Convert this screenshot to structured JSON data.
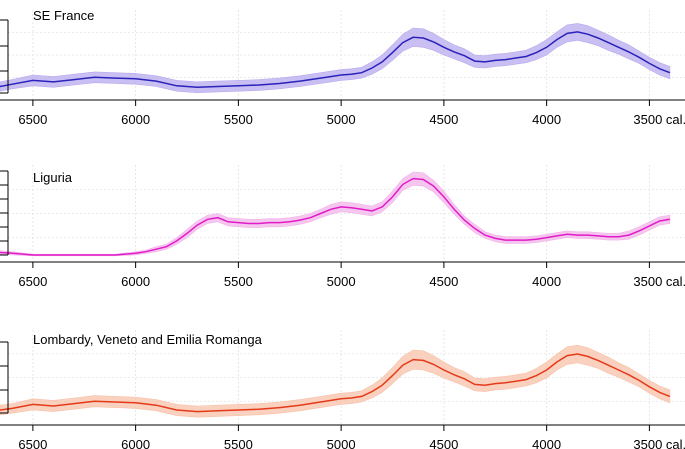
{
  "chart_data": [
    {
      "type": "area",
      "title": "SE France",
      "xlabel": "cal. BC",
      "xlim": [
        6660,
        3390
      ],
      "ylim": [
        0,
        1
      ],
      "x_ticks": [
        6500,
        6000,
        5500,
        5000,
        4500,
        4000,
        3500
      ],
      "x_tick_labels": [
        "6500",
        "6000",
        "5500",
        "5000",
        "4500",
        "4000",
        "3500 cal. BC"
      ],
      "line_color": "#2a22bb",
      "band_color": "#b8aaee",
      "series": [
        {
          "name": "SE France",
          "x": [
            6660,
            6600,
            6500,
            6400,
            6300,
            6200,
            6100,
            6000,
            5900,
            5800,
            5700,
            5600,
            5500,
            5400,
            5300,
            5200,
            5100,
            5000,
            4950,
            4900,
            4850,
            4800,
            4750,
            4700,
            4650,
            4600,
            4550,
            4500,
            4450,
            4400,
            4350,
            4300,
            4250,
            4200,
            4150,
            4100,
            4050,
            4000,
            3950,
            3900,
            3850,
            3800,
            3750,
            3700,
            3650,
            3600,
            3550,
            3500,
            3450,
            3400
          ],
          "values": [
            0.11,
            0.14,
            0.19,
            0.17,
            0.2,
            0.23,
            0.22,
            0.21,
            0.18,
            0.12,
            0.1,
            0.11,
            0.12,
            0.13,
            0.15,
            0.18,
            0.22,
            0.26,
            0.27,
            0.29,
            0.35,
            0.43,
            0.55,
            0.68,
            0.75,
            0.74,
            0.69,
            0.62,
            0.56,
            0.51,
            0.44,
            0.43,
            0.45,
            0.46,
            0.48,
            0.5,
            0.55,
            0.62,
            0.72,
            0.8,
            0.82,
            0.79,
            0.74,
            0.68,
            0.62,
            0.56,
            0.49,
            0.41,
            0.34,
            0.29
          ],
          "band_halfwidth": [
            0.06,
            0.06,
            0.07,
            0.07,
            0.07,
            0.07,
            0.07,
            0.07,
            0.07,
            0.07,
            0.07,
            0.07,
            0.07,
            0.07,
            0.07,
            0.07,
            0.07,
            0.07,
            0.07,
            0.07,
            0.08,
            0.09,
            0.1,
            0.11,
            0.12,
            0.12,
            0.11,
            0.1,
            0.09,
            0.09,
            0.08,
            0.08,
            0.08,
            0.08,
            0.08,
            0.08,
            0.09,
            0.1,
            0.1,
            0.11,
            0.11,
            0.11,
            0.1,
            0.1,
            0.09,
            0.09,
            0.08,
            0.08,
            0.08,
            0.08
          ]
        }
      ]
    },
    {
      "type": "area",
      "title": "Liguria",
      "xlabel": "cal. BC",
      "xlim": [
        6660,
        3390
      ],
      "ylim": [
        0,
        1
      ],
      "x_ticks": [
        6500,
        6000,
        5500,
        5000,
        4500,
        4000,
        3500
      ],
      "x_tick_labels": [
        "6500",
        "6000",
        "5500",
        "5000",
        "4500",
        "4000",
        "3500 cal. BC"
      ],
      "line_color": "#e21bc8",
      "band_color": "#f2b4ea",
      "series": [
        {
          "name": "Liguria",
          "x": [
            6660,
            6600,
            6500,
            6400,
            6300,
            6200,
            6100,
            6000,
            5950,
            5900,
            5850,
            5800,
            5750,
            5700,
            5650,
            5600,
            5550,
            5500,
            5450,
            5400,
            5350,
            5300,
            5250,
            5200,
            5150,
            5100,
            5050,
            5000,
            4950,
            4900,
            4850,
            4800,
            4750,
            4700,
            4650,
            4600,
            4550,
            4500,
            4450,
            4400,
            4350,
            4300,
            4250,
            4200,
            4150,
            4100,
            4050,
            4000,
            3950,
            3900,
            3850,
            3800,
            3750,
            3700,
            3650,
            3600,
            3550,
            3500,
            3450,
            3400
          ],
          "values": [
            0.03,
            0.02,
            0.0,
            0.0,
            0.0,
            0.0,
            0.0,
            0.02,
            0.04,
            0.07,
            0.1,
            0.17,
            0.26,
            0.36,
            0.43,
            0.45,
            0.4,
            0.39,
            0.38,
            0.38,
            0.39,
            0.39,
            0.4,
            0.42,
            0.45,
            0.5,
            0.55,
            0.58,
            0.57,
            0.55,
            0.53,
            0.58,
            0.7,
            0.85,
            0.92,
            0.91,
            0.83,
            0.7,
            0.55,
            0.42,
            0.32,
            0.24,
            0.2,
            0.18,
            0.18,
            0.18,
            0.19,
            0.21,
            0.23,
            0.25,
            0.24,
            0.24,
            0.23,
            0.22,
            0.22,
            0.24,
            0.29,
            0.35,
            0.41,
            0.43
          ],
          "band_halfwidth": [
            0.02,
            0.02,
            0.01,
            0.01,
            0.01,
            0.01,
            0.01,
            0.02,
            0.02,
            0.03,
            0.03,
            0.04,
            0.05,
            0.05,
            0.05,
            0.05,
            0.05,
            0.05,
            0.05,
            0.05,
            0.05,
            0.05,
            0.05,
            0.05,
            0.05,
            0.05,
            0.06,
            0.06,
            0.06,
            0.06,
            0.06,
            0.06,
            0.07,
            0.07,
            0.08,
            0.08,
            0.07,
            0.07,
            0.06,
            0.05,
            0.05,
            0.04,
            0.04,
            0.04,
            0.04,
            0.04,
            0.04,
            0.04,
            0.04,
            0.04,
            0.04,
            0.04,
            0.04,
            0.04,
            0.04,
            0.05,
            0.05,
            0.05,
            0.05,
            0.05
          ]
        }
      ]
    },
    {
      "type": "area",
      "title": "Lombardy, Veneto and Emilia Romanga",
      "xlabel": "cal. BC",
      "xlim": [
        6660,
        3390
      ],
      "ylim": [
        0,
        1
      ],
      "x_ticks": [
        6500,
        6000,
        5500,
        5000,
        4500,
        4000,
        3500
      ],
      "x_tick_labels": [
        "6500",
        "6000",
        "5500",
        "5000",
        "4500",
        "4000",
        "3500 cal. BC"
      ],
      "line_color": "#e53a1a",
      "band_color": "#f7c2a8",
      "series": [
        {
          "name": "Lombardy, Veneto and Emilia Romanga",
          "x": [
            6660,
            6600,
            6500,
            6400,
            6300,
            6200,
            6100,
            6000,
            5900,
            5800,
            5700,
            5600,
            5500,
            5400,
            5300,
            5200,
            5100,
            5000,
            4950,
            4900,
            4850,
            4800,
            4750,
            4700,
            4650,
            4600,
            4550,
            4500,
            4450,
            4400,
            4350,
            4300,
            4250,
            4200,
            4150,
            4100,
            4050,
            4000,
            3950,
            3900,
            3850,
            3800,
            3750,
            3700,
            3650,
            3600,
            3550,
            3500,
            3450,
            3400
          ],
          "values": [
            0.1,
            0.12,
            0.17,
            0.15,
            0.18,
            0.21,
            0.2,
            0.19,
            0.16,
            0.1,
            0.08,
            0.09,
            0.1,
            0.11,
            0.13,
            0.16,
            0.2,
            0.24,
            0.25,
            0.27,
            0.33,
            0.41,
            0.53,
            0.66,
            0.73,
            0.72,
            0.67,
            0.6,
            0.54,
            0.49,
            0.42,
            0.41,
            0.43,
            0.44,
            0.46,
            0.48,
            0.53,
            0.6,
            0.7,
            0.78,
            0.8,
            0.77,
            0.72,
            0.66,
            0.6,
            0.54,
            0.47,
            0.39,
            0.32,
            0.27
          ],
          "band_halfwidth": [
            0.06,
            0.06,
            0.07,
            0.07,
            0.07,
            0.07,
            0.07,
            0.07,
            0.07,
            0.07,
            0.07,
            0.07,
            0.07,
            0.07,
            0.07,
            0.07,
            0.07,
            0.07,
            0.07,
            0.07,
            0.08,
            0.09,
            0.1,
            0.11,
            0.12,
            0.12,
            0.11,
            0.1,
            0.09,
            0.09,
            0.08,
            0.08,
            0.08,
            0.08,
            0.08,
            0.08,
            0.09,
            0.1,
            0.1,
            0.11,
            0.11,
            0.11,
            0.1,
            0.1,
            0.09,
            0.09,
            0.08,
            0.08,
            0.08,
            0.08
          ]
        }
      ]
    }
  ]
}
